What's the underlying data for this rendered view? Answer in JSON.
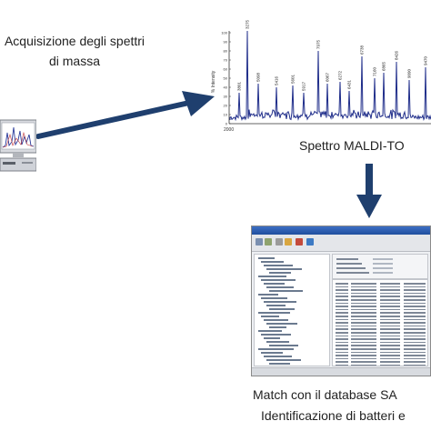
{
  "captions": {
    "acquisition_line1": "Acquisizione degli spettri",
    "acquisition_line2": "di massa",
    "maldi": "Spettro MALDI-TO",
    "match_line1": "Match con il database SA",
    "match_line2": "Identificazione di batteri e"
  },
  "spectrum": {
    "ylabel": "% Intensity",
    "y_ticks": [
      "100",
      "90",
      "80",
      "70",
      "60",
      "50",
      "40",
      "30",
      "20",
      "10",
      "0"
    ],
    "x_start_label": "2000",
    "peak_labels": [
      "3801",
      "3275",
      "5098",
      "5416",
      "5601",
      "5917",
      "7975",
      "6067",
      "6272",
      "6431",
      "6738",
      "7160",
      "6865",
      "8426",
      "9090",
      "9470"
    ],
    "line_color": "#1f2d8a"
  },
  "colors": {
    "arrow": "#1f3f6e"
  }
}
